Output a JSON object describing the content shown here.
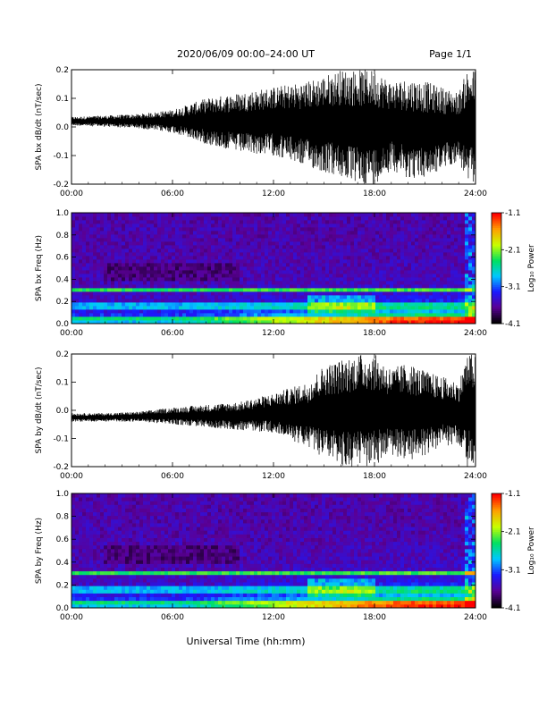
{
  "header": {
    "title": "2020/06/09  00:00–24:00 UT",
    "page": "Page 1/1"
  },
  "xaxis_label": "Universal Time (hh:mm)",
  "colorbar": {
    "label": "Log₁₀ Power",
    "ticks": [
      "-1.1",
      "-2.1",
      "-3.1",
      "-4.1"
    ],
    "range": [
      -4.1,
      -1.1
    ],
    "colors": [
      "#000000",
      "#5a0096",
      "#1a1aff",
      "#00c8ff",
      "#00e060",
      "#c8ff00",
      "#ffa000",
      "#ff0000"
    ]
  },
  "chart_data": [
    {
      "type": "line",
      "ylabel": "SPA bx dB/dt (nT/sec)",
      "ylim": [
        -0.2,
        0.2
      ],
      "yticks": [
        "0.2",
        "0.1",
        "0.0",
        "-0.1",
        "-0.2"
      ],
      "xlim": [
        0,
        24
      ],
      "xticks": [
        "00:00",
        "06:00",
        "12:00",
        "18:00",
        "24:00"
      ],
      "series": [
        {
          "x": [
            0,
            2,
            4,
            6,
            8,
            10,
            12,
            14,
            15,
            16,
            17,
            18,
            19,
            20,
            21,
            22,
            23,
            23.5,
            24
          ],
          "min": [
            0.005,
            0.0,
            -0.005,
            -0.02,
            -0.06,
            -0.09,
            -0.1,
            -0.14,
            -0.16,
            -0.18,
            -0.2,
            -0.2,
            -0.15,
            -0.18,
            -0.18,
            -0.15,
            -0.12,
            -0.2,
            -0.2
          ],
          "max": [
            0.035,
            0.04,
            0.045,
            0.06,
            0.1,
            0.12,
            0.14,
            0.16,
            0.18,
            0.2,
            0.2,
            0.2,
            0.16,
            0.17,
            0.16,
            0.14,
            0.12,
            0.2,
            0.2
          ]
        }
      ]
    },
    {
      "type": "heatmap",
      "ylabel": "SPA bx Freq (Hz)",
      "ylim": [
        0.0,
        1.0
      ],
      "yticks": [
        "1.0",
        "0.8",
        "0.6",
        "0.4",
        "0.2",
        "0.0"
      ],
      "xlim": [
        0,
        24
      ],
      "xticks": [
        "00:00",
        "06:00",
        "12:00",
        "18:00",
        "24:00"
      ],
      "lines_hz": [
        0.05,
        0.13,
        0.19,
        0.3,
        0.32
      ],
      "enhancement": {
        "start_hour": 14,
        "end_hour": 18,
        "freq_hz": [
          0.1,
          0.25
        ]
      }
    },
    {
      "type": "line",
      "ylabel": "SPA by dB/dt (nT/sec)",
      "ylim": [
        -0.2,
        0.2
      ],
      "yticks": [
        "0.2",
        "0.1",
        "0.0",
        "-0.1",
        "-0.2"
      ],
      "xlim": [
        0,
        24
      ],
      "xticks": [
        "00:00",
        "06:00",
        "12:00",
        "18:00",
        "24:00"
      ],
      "series": [
        {
          "x": [
            0,
            2,
            4,
            6,
            8,
            10,
            12,
            14,
            15,
            16,
            17,
            18,
            19,
            20,
            21,
            22,
            23,
            23.5,
            24
          ],
          "min": [
            -0.04,
            -0.04,
            -0.04,
            -0.05,
            -0.06,
            -0.07,
            -0.08,
            -0.13,
            -0.17,
            -0.2,
            -0.2,
            -0.2,
            -0.16,
            -0.18,
            -0.16,
            -0.13,
            -0.12,
            -0.2,
            -0.2
          ],
          "max": [
            -0.01,
            -0.01,
            -0.005,
            0.01,
            0.02,
            0.03,
            0.06,
            0.1,
            0.16,
            0.18,
            0.2,
            0.2,
            0.15,
            0.17,
            0.14,
            0.12,
            0.1,
            0.2,
            0.2
          ]
        }
      ]
    },
    {
      "type": "heatmap",
      "ylabel": "SPA by Freq (Hz)",
      "ylim": [
        0.0,
        1.0
      ],
      "yticks": [
        "1.0",
        "0.8",
        "0.6",
        "0.4",
        "0.2",
        "0.0"
      ],
      "xlim": [
        0,
        24
      ],
      "xticks": [
        "00:00",
        "06:00",
        "12:00",
        "18:00",
        "24:00"
      ],
      "lines_hz": [
        0.05,
        0.13,
        0.19,
        0.3,
        0.32
      ],
      "enhancement": {
        "start_hour": 14,
        "end_hour": 18,
        "freq_hz": [
          0.1,
          0.25
        ]
      }
    }
  ]
}
